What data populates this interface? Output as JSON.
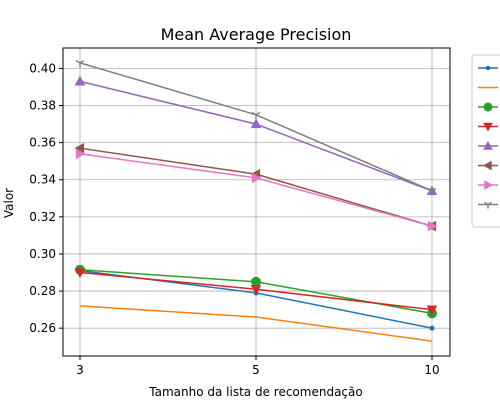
{
  "chart_data": {
    "type": "line",
    "title": "Mean Average Precision",
    "xlabel": "Tamanho da lista de recomendação",
    "ylabel": "Valor",
    "x": [
      3,
      5,
      10
    ],
    "x_tick_labels": [
      "3",
      "5",
      "10"
    ],
    "ylim": [
      0.245,
      0.411
    ],
    "y_ticks": [
      0.26,
      0.28,
      0.3,
      0.32,
      0.34,
      0.36,
      0.38,
      0.4
    ],
    "y_tick_labels": [
      "0.26",
      "0.28",
      "0.30",
      "0.32",
      "0.34",
      "0.36",
      "0.38",
      "0.40"
    ],
    "grid": true,
    "legend_position": "right, outside plot",
    "series": [
      {
        "values": [
          0.291,
          0.279,
          0.26
        ],
        "color": "#1f77b4",
        "marker": "point"
      },
      {
        "values": [
          0.272,
          0.266,
          0.253
        ],
        "color": "#ff7f0e",
        "marker": "none"
      },
      {
        "values": [
          0.2915,
          0.285,
          0.268
        ],
        "color": "#2ca02c",
        "marker": "circle"
      },
      {
        "values": [
          0.29,
          0.281,
          0.27
        ],
        "color": "#d62728",
        "marker": "triangle-down"
      },
      {
        "values": [
          0.393,
          0.37,
          0.334
        ],
        "color": "#9467bd",
        "marker": "triangle-up"
      },
      {
        "values": [
          0.357,
          0.343,
          0.315
        ],
        "color": "#8c564b",
        "marker": "triangle-left"
      },
      {
        "values": [
          0.354,
          0.341,
          0.315
        ],
        "color": "#e377c2",
        "marker": "triangle-right"
      },
      {
        "values": [
          0.403,
          0.375,
          0.334
        ],
        "color": "#7f7f7f",
        "marker": "tri-down"
      }
    ]
  }
}
